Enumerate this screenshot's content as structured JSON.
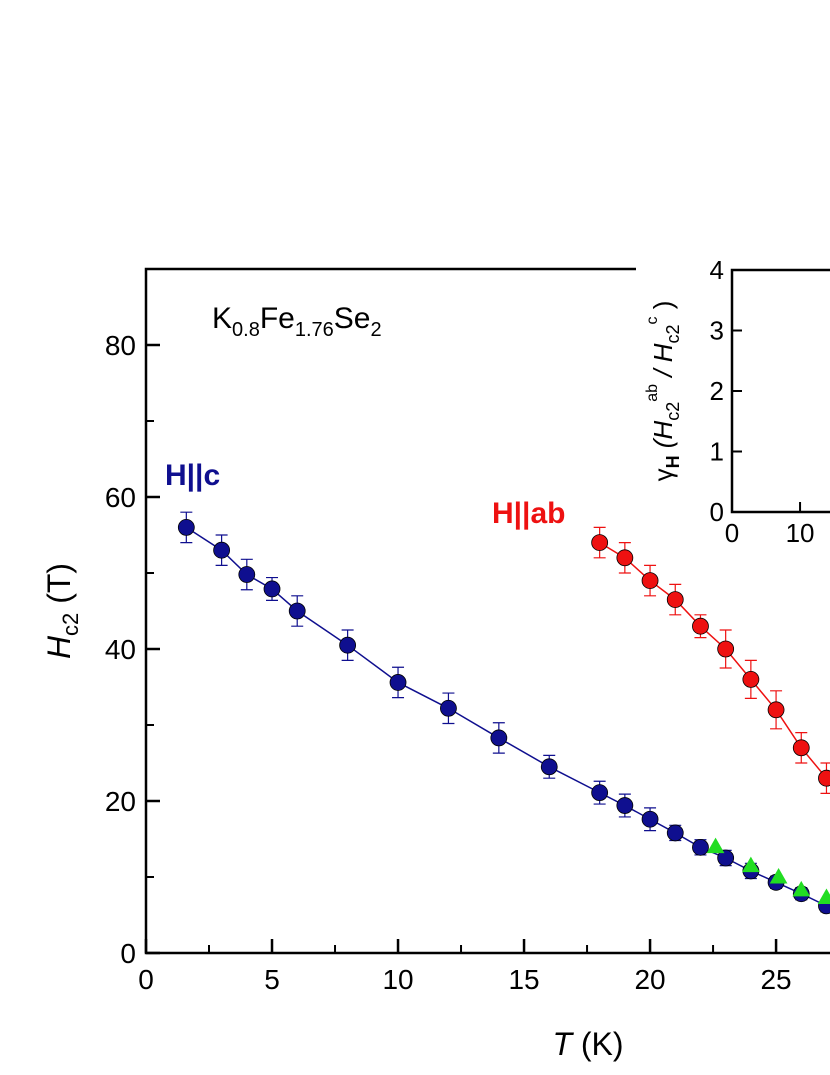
{
  "chart_data": {
    "type": "scatter",
    "annotation": [
      "K",
      "0.8",
      "Fe",
      "1.76",
      "Se",
      "2"
    ],
    "xlabel": [
      "T",
      " (K)"
    ],
    "ylabel": [
      "H",
      "c2",
      " (T)"
    ],
    "xlim": [
      0,
      27.14
    ],
    "ylim": [
      0,
      90
    ],
    "xticks": [
      0,
      5,
      10,
      15,
      20,
      25
    ],
    "yticks": [
      0,
      20,
      40,
      60,
      80
    ],
    "xminorticks": [
      2.5,
      7.5,
      12.5,
      17.5,
      22.5
    ],
    "yminorticks": [
      10,
      30,
      50,
      70
    ],
    "series": [
      {
        "name": "H||c",
        "color": "#0f0f8f",
        "line": true,
        "x": [
          1.6,
          3,
          4,
          5,
          6,
          8,
          10,
          12,
          14,
          16,
          18,
          19,
          20,
          21,
          22,
          23,
          24,
          25,
          26,
          27
        ],
        "values": [
          56,
          53,
          49.8,
          47.9,
          45,
          40.5,
          35.6,
          32.2,
          28.3,
          24.5,
          21.1,
          19.4,
          17.6,
          15.8,
          13.9,
          12.5,
          10.8,
          9.3,
          7.8,
          6.2
        ],
        "errors": [
          2,
          2,
          2,
          1.5,
          2,
          2,
          2,
          2,
          2,
          1.5,
          1.5,
          1.5,
          1.5,
          1,
          1,
          1,
          1,
          0.8,
          0.8,
          0.8
        ]
      },
      {
        "name": "H||ab",
        "color": "#ee1111",
        "line": true,
        "x": [
          18,
          19,
          20,
          21,
          22,
          23,
          24,
          25,
          26,
          27
        ],
        "values": [
          54,
          52,
          49,
          46.5,
          43,
          40,
          36,
          32,
          27,
          23
        ],
        "errors": [
          2,
          2,
          2,
          2,
          1.5,
          2.5,
          2.5,
          2.5,
          2,
          2
        ]
      },
      {
        "color": "#22dd22",
        "marker": "triangle",
        "x": [
          22.6,
          24,
          25.1,
          26,
          27
        ],
        "values": [
          14,
          11.5,
          10,
          8.3,
          7.3
        ]
      }
    ],
    "inset": {
      "ylabel": [
        "γ",
        "H",
        " (H",
        "c2",
        "ab",
        " / H",
        "c2",
        "c",
        " )"
      ],
      "xlim": [
        0,
        14.4
      ],
      "ylim": [
        0,
        4
      ],
      "xticks": [
        0,
        10
      ],
      "yticks": [
        0,
        1,
        2,
        3,
        4
      ]
    }
  }
}
